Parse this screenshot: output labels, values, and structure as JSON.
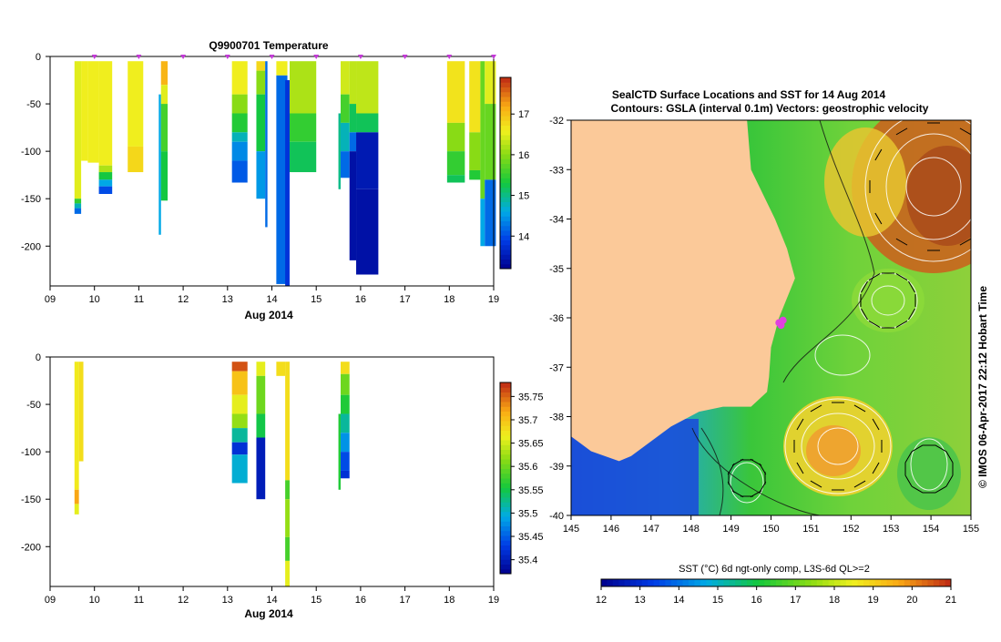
{
  "chart_data": [
    {
      "type": "heatmap",
      "id": "temperature-section",
      "title": "Q9900701  Temperature",
      "xlabel": "Aug 2014",
      "x_ticks": [
        "09",
        "10",
        "11",
        "12",
        "13",
        "14",
        "15",
        "16",
        "17",
        "18",
        "19"
      ],
      "xlim": [
        9,
        19
      ],
      "y_ticks": [
        "0",
        "-50",
        "-100",
        "-150",
        "-200"
      ],
      "y_tick_values": [
        0,
        -50,
        -100,
        -150,
        -200
      ],
      "ylim": [
        -242,
        0
      ],
      "profile_markers": [
        10,
        11,
        12,
        13,
        14,
        15,
        16,
        17,
        18,
        19
      ],
      "colorbar": {
        "ticks": [
          "14",
          "15",
          "16",
          "17"
        ],
        "tick_values": [
          14,
          15,
          16,
          17
        ],
        "range": [
          13.2,
          17.9
        ]
      },
      "casts": [
        {
          "x0": 9.55,
          "x1": 9.7,
          "segs": [
            [
              -5,
              -150,
              16.5
            ],
            [
              -150,
              -155,
              15.5
            ],
            [
              -155,
              -160,
              14.8
            ],
            [
              -160,
              -166,
              14.2
            ]
          ]
        },
        {
          "x0": 9.7,
          "x1": 9.85,
          "segs": [
            [
              -5,
              -110,
              16.6
            ]
          ]
        },
        {
          "x0": 9.85,
          "x1": 10.1,
          "segs": [
            [
              -5,
              -112,
              16.6
            ]
          ]
        },
        {
          "x0": 10.1,
          "x1": 10.4,
          "segs": [
            [
              -5,
              -115,
              16.6
            ],
            [
              -115,
              -122,
              16.2
            ],
            [
              -122,
              -130,
              15.3
            ],
            [
              -130,
              -137,
              14.6
            ],
            [
              -137,
              -145,
              14.0
            ]
          ]
        },
        {
          "x0": 10.75,
          "x1": 11.1,
          "segs": [
            [
              -5,
              -95,
              16.6
            ],
            [
              -95,
              -122,
              16.8
            ]
          ]
        },
        {
          "x0": 11.45,
          "x1": 11.5,
          "segs": [
            [
              -40,
              -188,
              14.6
            ]
          ]
        },
        {
          "x0": 11.5,
          "x1": 11.65,
          "segs": [
            [
              -5,
              -30,
              17.1
            ],
            [
              -30,
              -50,
              16.5
            ],
            [
              -50,
              -100,
              15.6
            ],
            [
              -100,
              -152,
              15.3
            ]
          ]
        },
        {
          "x0": 13.1,
          "x1": 13.45,
          "segs": [
            [
              -5,
              -40,
              16.6
            ],
            [
              -40,
              -60,
              16.0
            ],
            [
              -60,
              -80,
              15.4
            ],
            [
              -80,
              -90,
              14.8
            ],
            [
              -90,
              -110,
              14.4
            ],
            [
              -110,
              -133,
              14.1
            ]
          ]
        },
        {
          "x0": 13.65,
          "x1": 13.85,
          "segs": [
            [
              -5,
              -15,
              16.8
            ],
            [
              -15,
              -40,
              16.0
            ],
            [
              -40,
              -100,
              15.3
            ],
            [
              -100,
              -150,
              14.5
            ]
          ]
        },
        {
          "x0": 13.85,
          "x1": 13.9,
          "segs": [
            [
              -5,
              -180,
              14.2
            ]
          ]
        },
        {
          "x0": 14.1,
          "x1": 14.35,
          "segs": [
            [
              -5,
              -20,
              16.6
            ],
            [
              -20,
              -240,
              14.2
            ]
          ]
        },
        {
          "x0": 14.3,
          "x1": 14.4,
          "segs": [
            [
              -25,
              -242,
              13.8
            ]
          ]
        },
        {
          "x0": 14.4,
          "x1": 15.0,
          "segs": [
            [
              -5,
              -60,
              16.2
            ],
            [
              -60,
              -90,
              15.5
            ],
            [
              -90,
              -122,
              15.2
            ]
          ]
        },
        {
          "x0": 15.5,
          "x1": 15.55,
          "segs": [
            [
              -60,
              -140,
              15.0
            ]
          ]
        },
        {
          "x0": 15.55,
          "x1": 15.75,
          "segs": [
            [
              -5,
              -40,
              16.4
            ],
            [
              -40,
              -70,
              15.6
            ],
            [
              -70,
              -100,
              14.8
            ],
            [
              -100,
              -128,
              14.2
            ]
          ]
        },
        {
          "x0": 15.75,
          "x1": 15.9,
          "segs": [
            [
              -5,
              -50,
              16.3
            ],
            [
              -50,
              -80,
              15.2
            ],
            [
              -80,
              -100,
              14.2
            ],
            [
              -100,
              -215,
              13.4
            ]
          ]
        },
        {
          "x0": 15.9,
          "x1": 16.4,
          "segs": [
            [
              -5,
              -60,
              16.3
            ],
            [
              -60,
              -80,
              15.2
            ],
            [
              -80,
              -140,
              13.5
            ],
            [
              -140,
              -230,
              13.4
            ]
          ]
        },
        {
          "x0": 17.95,
          "x1": 18.35,
          "segs": [
            [
              -5,
              -70,
              16.7
            ],
            [
              -70,
              -100,
              16.0
            ],
            [
              -100,
              -125,
              15.5
            ],
            [
              -125,
              -133,
              15.2
            ]
          ]
        },
        {
          "x0": 18.45,
          "x1": 18.7,
          "segs": [
            [
              -5,
              -80,
              16.7
            ],
            [
              -80,
              -120,
              16.0
            ],
            [
              -120,
              -130,
              15.4
            ]
          ]
        },
        {
          "x0": 18.7,
          "x1": 18.8,
          "segs": [
            [
              -5,
              -150,
              15.8
            ],
            [
              -150,
              -200,
              14.6
            ]
          ]
        },
        {
          "x0": 18.8,
          "x1": 19.05,
          "segs": [
            [
              -5,
              -50,
              16.5
            ],
            [
              -50,
              -130,
              15.8
            ],
            [
              -130,
              -200,
              14.2
            ]
          ]
        }
      ]
    },
    {
      "type": "heatmap",
      "id": "salinity-section",
      "title": "",
      "xlabel": "Aug 2014",
      "x_ticks": [
        "09",
        "10",
        "11",
        "12",
        "13",
        "14",
        "15",
        "16",
        "17",
        "18",
        "19"
      ],
      "xlim": [
        9,
        19
      ],
      "y_ticks": [
        "0",
        "-50",
        "-100",
        "-150",
        "-200"
      ],
      "y_tick_values": [
        0,
        -50,
        -100,
        -150,
        -200
      ],
      "ylim": [
        -242,
        0
      ],
      "colorbar": {
        "ticks": [
          "35.4",
          "35.45",
          "35.5",
          "35.55",
          "35.6",
          "35.65",
          "35.7",
          "35.75"
        ],
        "tick_values": [
          35.4,
          35.45,
          35.5,
          35.55,
          35.6,
          35.65,
          35.7,
          35.75
        ],
        "range": [
          35.37,
          35.78
        ]
      },
      "casts": [
        {
          "x0": 9.55,
          "x1": 9.65,
          "segs": [
            [
              -5,
              -140,
              35.67
            ],
            [
              -140,
              -155,
              35.72
            ],
            [
              -155,
              -166,
              35.66
            ]
          ]
        },
        {
          "x0": 9.65,
          "x1": 9.75,
          "segs": [
            [
              -5,
              -110,
              35.68
            ]
          ]
        },
        {
          "x0": 13.1,
          "x1": 13.45,
          "segs": [
            [
              -5,
              -15,
              35.76
            ],
            [
              -15,
              -40,
              35.7
            ],
            [
              -40,
              -60,
              35.66
            ],
            [
              -60,
              -75,
              35.62
            ],
            [
              -75,
              -90,
              35.52
            ],
            [
              -90,
              -103,
              35.42
            ],
            [
              -103,
              -133,
              35.5
            ]
          ]
        },
        {
          "x0": 13.65,
          "x1": 13.85,
          "segs": [
            [
              -5,
              -20,
              35.66
            ],
            [
              -20,
              -60,
              35.6
            ],
            [
              -60,
              -85,
              35.55
            ],
            [
              -85,
              -150,
              35.4
            ]
          ]
        },
        {
          "x0": 14.1,
          "x1": 14.3,
          "segs": [
            [
              -5,
              -20,
              35.68
            ]
          ]
        },
        {
          "x0": 14.3,
          "x1": 14.4,
          "segs": [
            [
              -5,
              -130,
              35.68
            ],
            [
              -130,
              -150,
              35.58
            ],
            [
              -150,
              -190,
              35.62
            ],
            [
              -190,
              -215,
              35.58
            ],
            [
              -215,
              -242,
              35.66
            ]
          ]
        },
        {
          "x0": 15.5,
          "x1": 15.55,
          "segs": [
            [
              -60,
              -140,
              35.56
            ]
          ]
        },
        {
          "x0": 15.55,
          "x1": 15.75,
          "segs": [
            [
              -5,
              -18,
              35.68
            ],
            [
              -18,
              -40,
              35.6
            ],
            [
              -40,
              -60,
              35.56
            ],
            [
              -60,
              -80,
              35.52
            ],
            [
              -80,
              -100,
              35.48
            ],
            [
              -100,
              -120,
              35.44
            ],
            [
              -120,
              -128,
              35.42
            ]
          ]
        }
      ]
    },
    {
      "type": "heatmap",
      "id": "sst-map",
      "title": "SealCTD Surface Locations and SST for 14 Aug 2014",
      "subtitle": "Contours: GSLA (interval 0.1m) Vectors: geostrophic velocity",
      "x_ticks": [
        "145",
        "146",
        "147",
        "148",
        "149",
        "150",
        "151",
        "152",
        "153",
        "154",
        "155"
      ],
      "xlim": [
        145,
        155
      ],
      "y_ticks": [
        "-32",
        "-33",
        "-34",
        "-35",
        "-36",
        "-37",
        "-38",
        "-39",
        "-40"
      ],
      "ylim": [
        -40,
        -32
      ],
      "side_label": "© IMOS 06-Apr-2017 22:12 Hobart Time",
      "colorbar": {
        "label": "SST (°C) 6d ngt-only comp, L3S-6d QL>=2",
        "ticks": [
          "12",
          "13",
          "14",
          "15",
          "16",
          "17",
          "18",
          "19",
          "20",
          "21"
        ],
        "range": [
          12,
          21
        ]
      },
      "surface_locations": [
        [
          150.2,
          -36.1
        ],
        [
          150.25,
          -36.15
        ],
        [
          150.3,
          -36.05
        ]
      ],
      "coastline": [
        [
          149.4,
          -32
        ],
        [
          149.5,
          -33
        ],
        [
          149.8,
          -33.5
        ],
        [
          150.1,
          -34
        ],
        [
          150.4,
          -34.6
        ],
        [
          150.6,
          -35.2
        ],
        [
          150.4,
          -35.6
        ],
        [
          150.2,
          -36
        ],
        [
          150.0,
          -36.6
        ],
        [
          149.95,
          -37.2
        ],
        [
          149.9,
          -37.5
        ],
        [
          149.5,
          -37.8
        ],
        [
          148.8,
          -37.8
        ],
        [
          148.2,
          -37.9
        ],
        [
          147.5,
          -38.2
        ],
        [
          147.0,
          -38.5
        ],
        [
          146.5,
          -38.8
        ],
        [
          146.2,
          -38.9
        ],
        [
          145.5,
          -38.7
        ],
        [
          145,
          -38.4
        ]
      ]
    }
  ]
}
